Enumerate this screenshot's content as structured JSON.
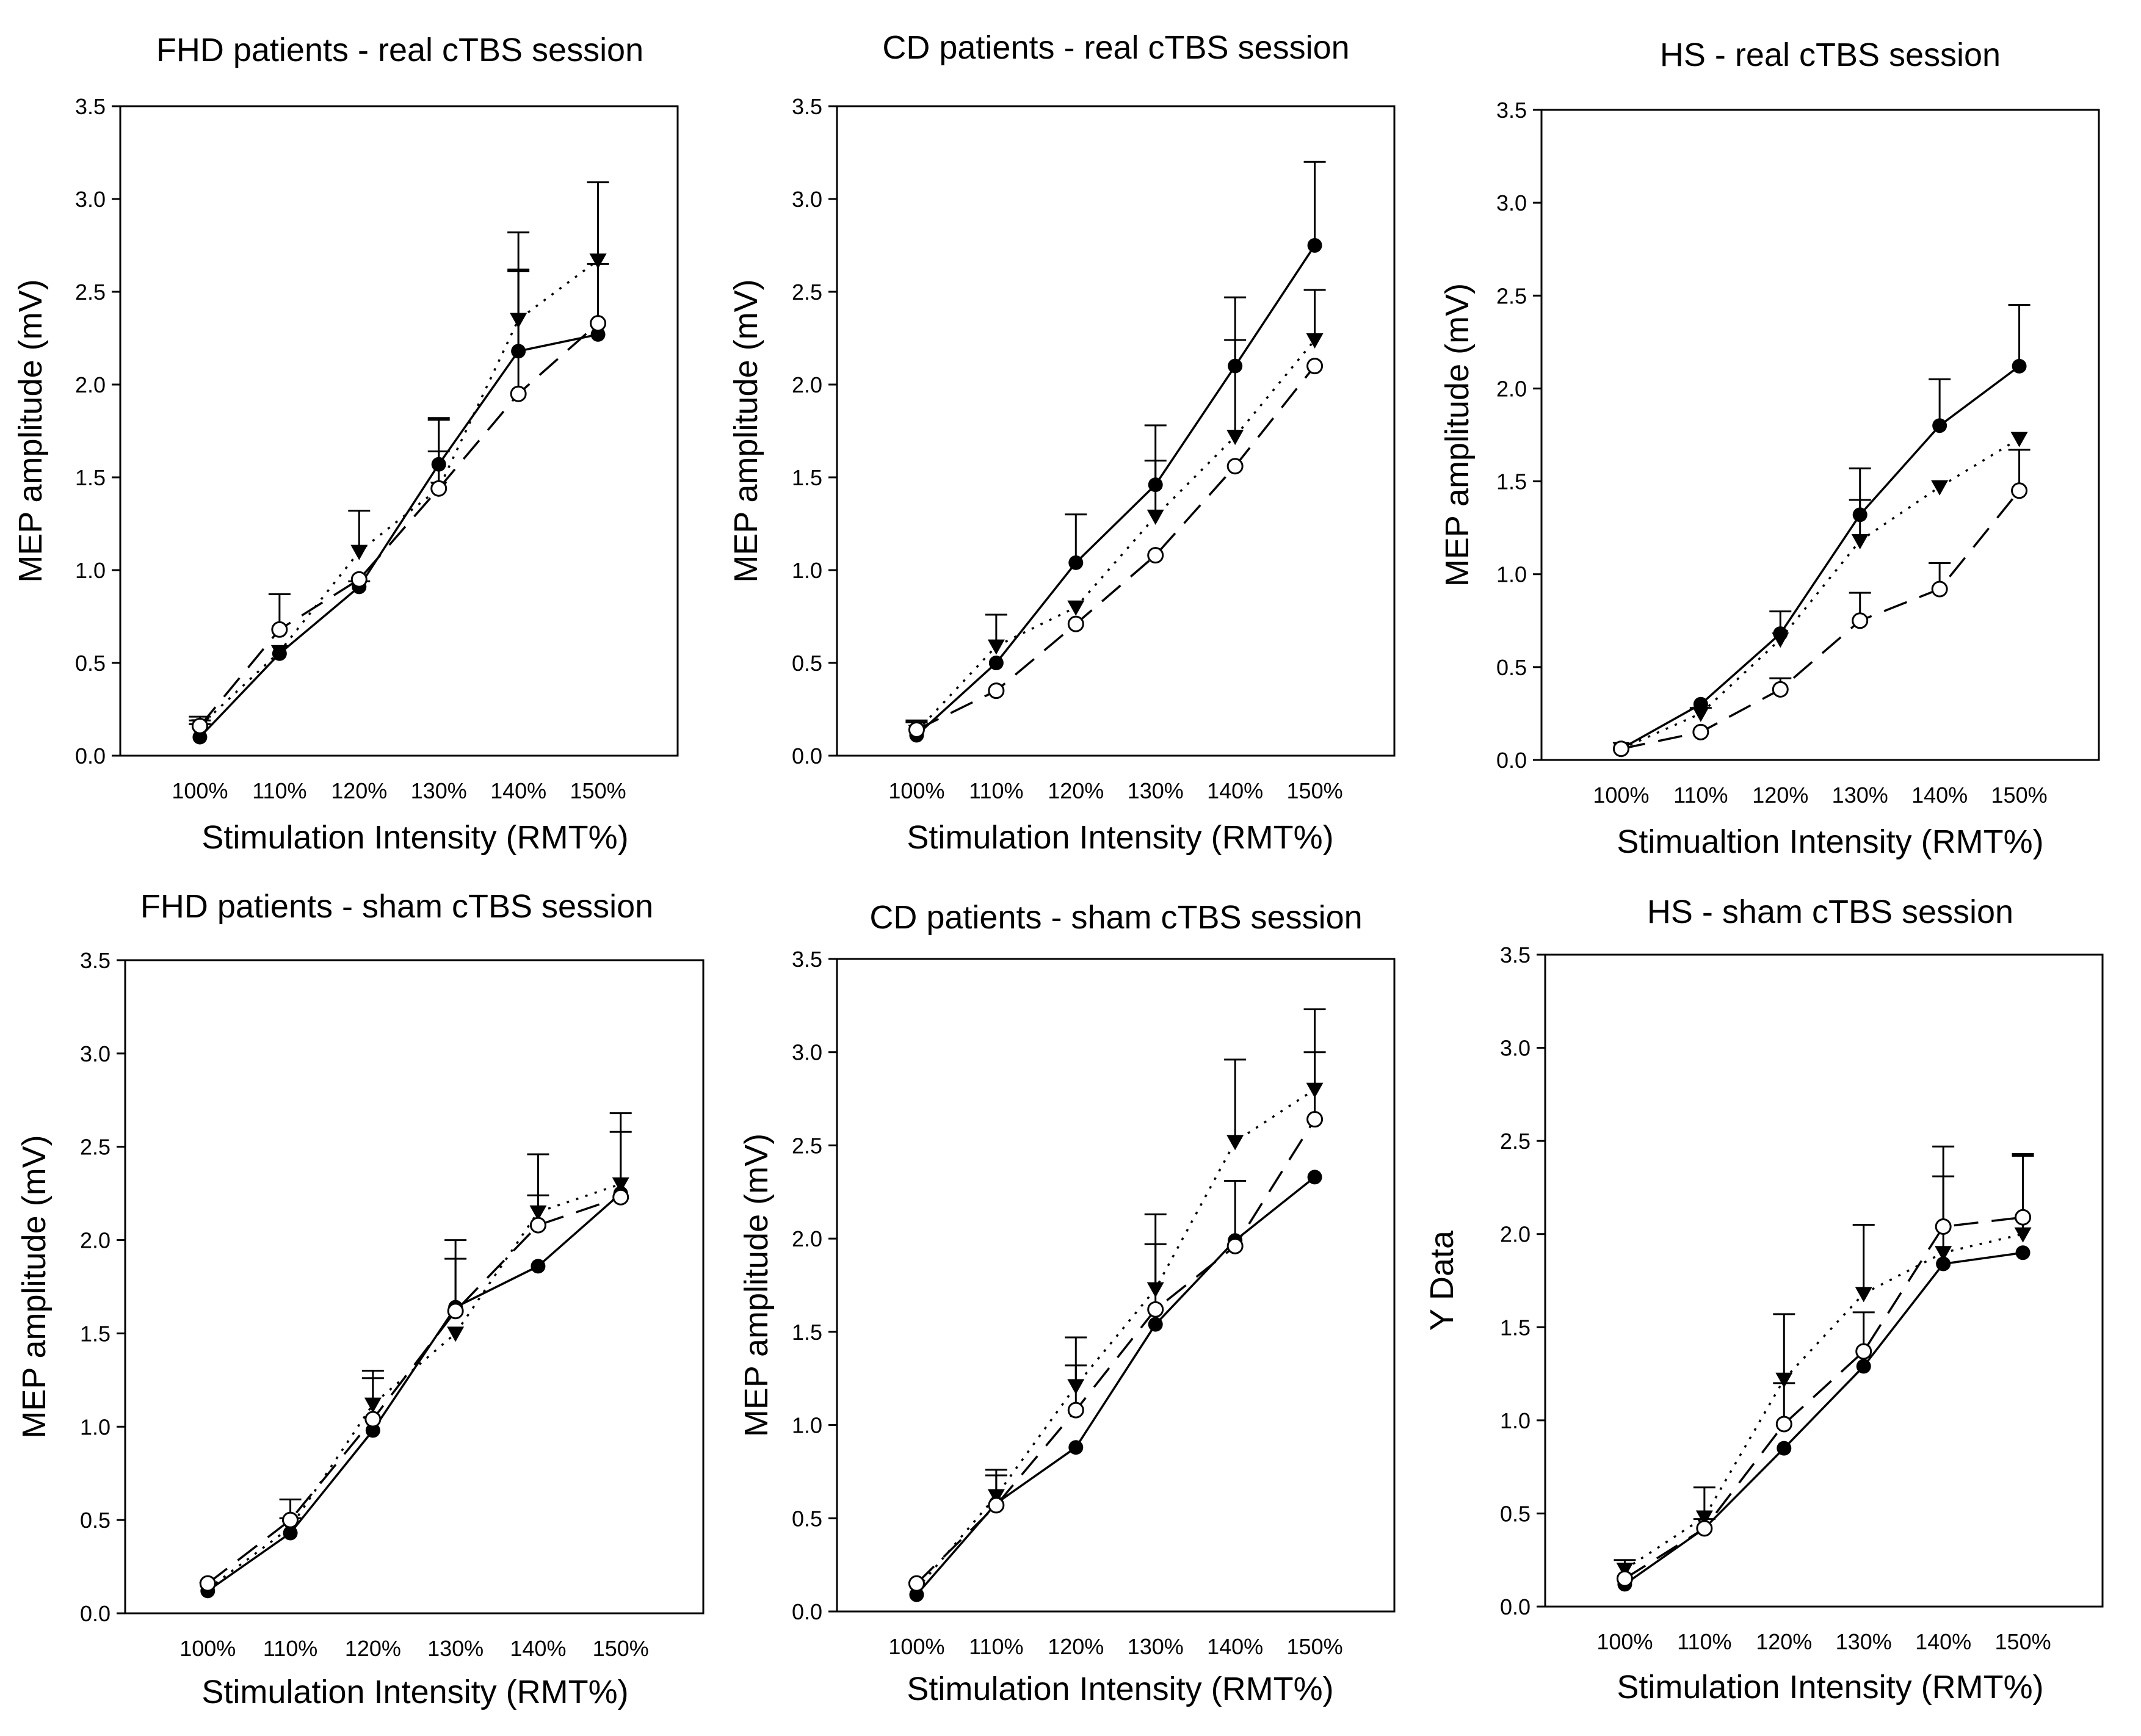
{
  "chart_data": [
    {
      "type": "line",
      "title": "FHD patients - real cTBS session",
      "xlabel": "Stimulation Intensity (RMT%)",
      "ylabel": "MEP amplitude (mV)",
      "categories": [
        "100%",
        "110%",
        "120%",
        "130%",
        "140%",
        "150%"
      ],
      "ylim": [
        0,
        3.5
      ],
      "yticks": [
        "0.0",
        "0.5",
        "1.0",
        "1.5",
        "2.0",
        "2.5",
        "3.0",
        "3.5"
      ],
      "series": [
        {
          "marker": "filled-circle",
          "line": "solid",
          "values": [
            0.1,
            0.55,
            0.91,
            1.57,
            2.18,
            2.27
          ],
          "error": [
            0.07,
            0.0,
            0.03,
            0.24,
            0.44,
            0.0
          ]
        },
        {
          "marker": "filled-triangle-down",
          "line": "dotted",
          "values": [
            0.16,
            0.56,
            1.1,
            1.44,
            2.35,
            2.67
          ],
          "error": [
            0.03,
            0.0,
            0.22,
            0.38,
            0.47,
            0.42
          ]
        },
        {
          "marker": "open-circle",
          "line": "dashed",
          "values": [
            0.16,
            0.68,
            0.95,
            1.44,
            1.95,
            2.33
          ],
          "error": [
            0.05,
            0.19,
            0.0,
            0.2,
            0.66,
            0.32
          ]
        }
      ]
    },
    {
      "type": "line",
      "title": "CD patients - real cTBS session",
      "xlabel": "Stimulation Intensity (RMT%)",
      "ylabel": "MEP amplitude (mV)",
      "categories": [
        "100%",
        "110%",
        "120%",
        "130%",
        "140%",
        "150%"
      ],
      "ylim": [
        0,
        3.5
      ],
      "yticks": [
        "0.0",
        "0.5",
        "1.0",
        "1.5",
        "2.0",
        "2.5",
        "3.0",
        "3.5"
      ],
      "series": [
        {
          "marker": "filled-circle",
          "line": "solid",
          "values": [
            0.11,
            0.5,
            1.04,
            1.46,
            2.1,
            2.75
          ],
          "error": [
            0.07,
            0.0,
            0.26,
            0.32,
            0.37,
            0.45
          ]
        },
        {
          "marker": "filled-triangle-down",
          "line": "dotted",
          "values": [
            0.13,
            0.59,
            0.8,
            1.29,
            1.72,
            2.24
          ],
          "error": [
            0.06,
            0.17,
            0.0,
            0.3,
            0.52,
            0.27
          ]
        },
        {
          "marker": "open-circle",
          "line": "dashed",
          "values": [
            0.14,
            0.35,
            0.71,
            1.08,
            1.56,
            2.1
          ],
          "error": [
            0.04,
            0.0,
            0.0,
            0.0,
            0.0,
            0.0
          ]
        }
      ]
    },
    {
      "type": "line",
      "title": "HS - real cTBS session",
      "xlabel": "Stimualtion Intensity (RMT%)",
      "ylabel": "MEP amplitude (mV)",
      "categories": [
        "100%",
        "110%",
        "120%",
        "130%",
        "140%",
        "150%"
      ],
      "ylim": [
        0,
        3.5
      ],
      "yticks": [
        "0.0",
        "0.5",
        "1.0",
        "1.5",
        "2.0",
        "2.5",
        "3.0",
        "3.5"
      ],
      "series": [
        {
          "marker": "filled-circle",
          "line": "solid",
          "values": [
            0.06,
            0.3,
            0.68,
            1.32,
            1.8,
            2.12
          ],
          "error": [
            0.0,
            0.0,
            0.12,
            0.25,
            0.25,
            0.33
          ]
        },
        {
          "marker": "filled-triangle-down",
          "line": "dotted",
          "values": [
            0.06,
            0.25,
            0.65,
            1.18,
            1.47,
            1.73
          ],
          "error": [
            0.0,
            0.03,
            0.0,
            0.22,
            0.0,
            0.0
          ]
        },
        {
          "marker": "open-circle",
          "line": "dashed",
          "values": [
            0.06,
            0.15,
            0.38,
            0.75,
            0.92,
            1.45
          ],
          "error": [
            0.0,
            0.0,
            0.06,
            0.15,
            0.14,
            0.22
          ]
        }
      ]
    },
    {
      "type": "line",
      "title": "FHD patients - sham cTBS session",
      "xlabel": "Stimulation Intensity (RMT%)",
      "ylabel": "MEP amplitude (mV)",
      "categories": [
        "100%",
        "110%",
        "120%",
        "130%",
        "140%",
        "150%"
      ],
      "ylim": [
        0,
        3.5
      ],
      "yticks": [
        "0.0",
        "0.5",
        "1.0",
        "1.5",
        "2.0",
        "2.5",
        "3.0",
        "3.5"
      ],
      "series": [
        {
          "marker": "filled-circle",
          "line": "solid",
          "values": [
            0.12,
            0.43,
            0.98,
            1.64,
            1.86,
            2.25
          ],
          "error": [
            0.0,
            0.0,
            0.0,
            0.26,
            0.0,
            0.0
          ]
        },
        {
          "marker": "filled-triangle-down",
          "line": "dotted",
          "values": [
            0.13,
            0.46,
            1.12,
            1.5,
            2.15,
            2.3
          ],
          "error": [
            0.0,
            0.05,
            0.18,
            0.0,
            0.31,
            0.38
          ]
        },
        {
          "marker": "open-circle",
          "line": "dashed",
          "values": [
            0.16,
            0.5,
            1.04,
            1.62,
            2.08,
            2.23
          ],
          "error": [
            0.0,
            0.11,
            0.22,
            0.38,
            0.16,
            0.35
          ]
        }
      ]
    },
    {
      "type": "line",
      "title": "CD patients - sham cTBS session",
      "xlabel": "Stimulation Intensity (RMT%)",
      "ylabel": "MEP amplitude (mV)",
      "categories": [
        "100%",
        "110%",
        "120%",
        "130%",
        "140%",
        "150%"
      ],
      "ylim": [
        0,
        3.5
      ],
      "yticks": [
        "0.0",
        "0.5",
        "1.0",
        "1.5",
        "2.0",
        "2.5",
        "3.0",
        "3.5"
      ],
      "series": [
        {
          "marker": "filled-circle",
          "line": "solid",
          "values": [
            0.09,
            0.58,
            0.88,
            1.54,
            1.99,
            2.33
          ],
          "error": [
            0.0,
            0.0,
            0.0,
            0.0,
            0.0,
            0.0
          ]
        },
        {
          "marker": "filled-triangle-down",
          "line": "dotted",
          "values": [
            0.12,
            0.62,
            1.21,
            1.73,
            2.52,
            2.8
          ],
          "error": [
            0.0,
            0.14,
            0.26,
            0.4,
            0.44,
            0.43
          ]
        },
        {
          "marker": "open-circle",
          "line": "dashed",
          "values": [
            0.15,
            0.57,
            1.08,
            1.62,
            1.96,
            2.64
          ],
          "error": [
            0.0,
            0.16,
            0.24,
            0.35,
            0.35,
            0.36
          ]
        }
      ]
    },
    {
      "type": "line",
      "title": "HS - sham cTBS session",
      "xlabel": "Stimulation Intensity (RMT%)",
      "ylabel": "Y Data",
      "categories": [
        "100%",
        "110%",
        "120%",
        "130%",
        "140%",
        "150%"
      ],
      "ylim": [
        0,
        3.5
      ],
      "yticks": [
        "0.0",
        "0.5",
        "1.0",
        "1.5",
        "2.0",
        "2.5",
        "3.0",
        "3.5"
      ],
      "series": [
        {
          "marker": "filled-circle",
          "line": "solid",
          "values": [
            0.12,
            0.42,
            0.85,
            1.29,
            1.84,
            1.9
          ],
          "error": [
            0.0,
            0.0,
            0.0,
            0.0,
            0.0,
            0.0
          ]
        },
        {
          "marker": "filled-triangle-down",
          "line": "dotted",
          "values": [
            0.2,
            0.48,
            1.22,
            1.68,
            1.9,
            2.0
          ],
          "error": [
            0.05,
            0.16,
            0.35,
            0.37,
            0.57,
            0.43
          ]
        },
        {
          "marker": "open-circle",
          "line": "dashed",
          "values": [
            0.15,
            0.42,
            0.98,
            1.37,
            2.04,
            2.09
          ],
          "error": [
            0.0,
            0.05,
            0.22,
            0.21,
            0.27,
            0.33
          ]
        }
      ]
    }
  ]
}
